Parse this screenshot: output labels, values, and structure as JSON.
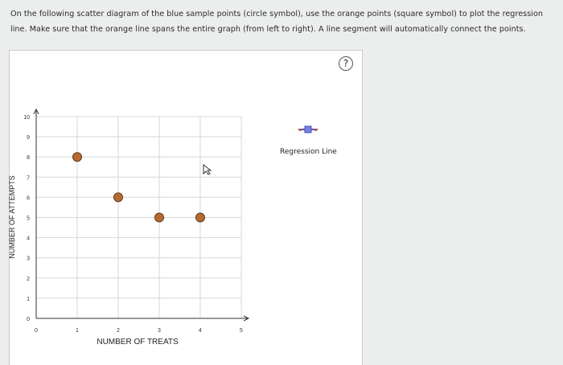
{
  "instructions": "On the following scatter diagram of the blue sample points (circle symbol), use the orange points (square symbol) to plot the regression line. Make sure that the orange line spans the entire graph (from left to right). A line segment will automatically connect the points.",
  "help_label": "?",
  "legend": {
    "label": "Regression Line",
    "color": "#3a56c7",
    "accent": "#e05a2b"
  },
  "chart_data": {
    "type": "scatter",
    "xlabel": "NUMBER OF TREATS",
    "ylabel": "NUMBER OF ATTEMPTS",
    "xlim": [
      0,
      5
    ],
    "ylim": [
      0,
      10
    ],
    "xticks": [
      0,
      1,
      2,
      3,
      4,
      5
    ],
    "yticks": [
      0,
      1,
      2,
      3,
      4,
      5,
      6,
      7,
      8,
      9,
      10
    ],
    "grid": true,
    "point_color": "#b86a2e",
    "points": [
      {
        "x": 1,
        "y": 8
      },
      {
        "x": 2,
        "y": 6
      },
      {
        "x": 3,
        "y": 5
      },
      {
        "x": 4,
        "y": 5
      }
    ]
  }
}
